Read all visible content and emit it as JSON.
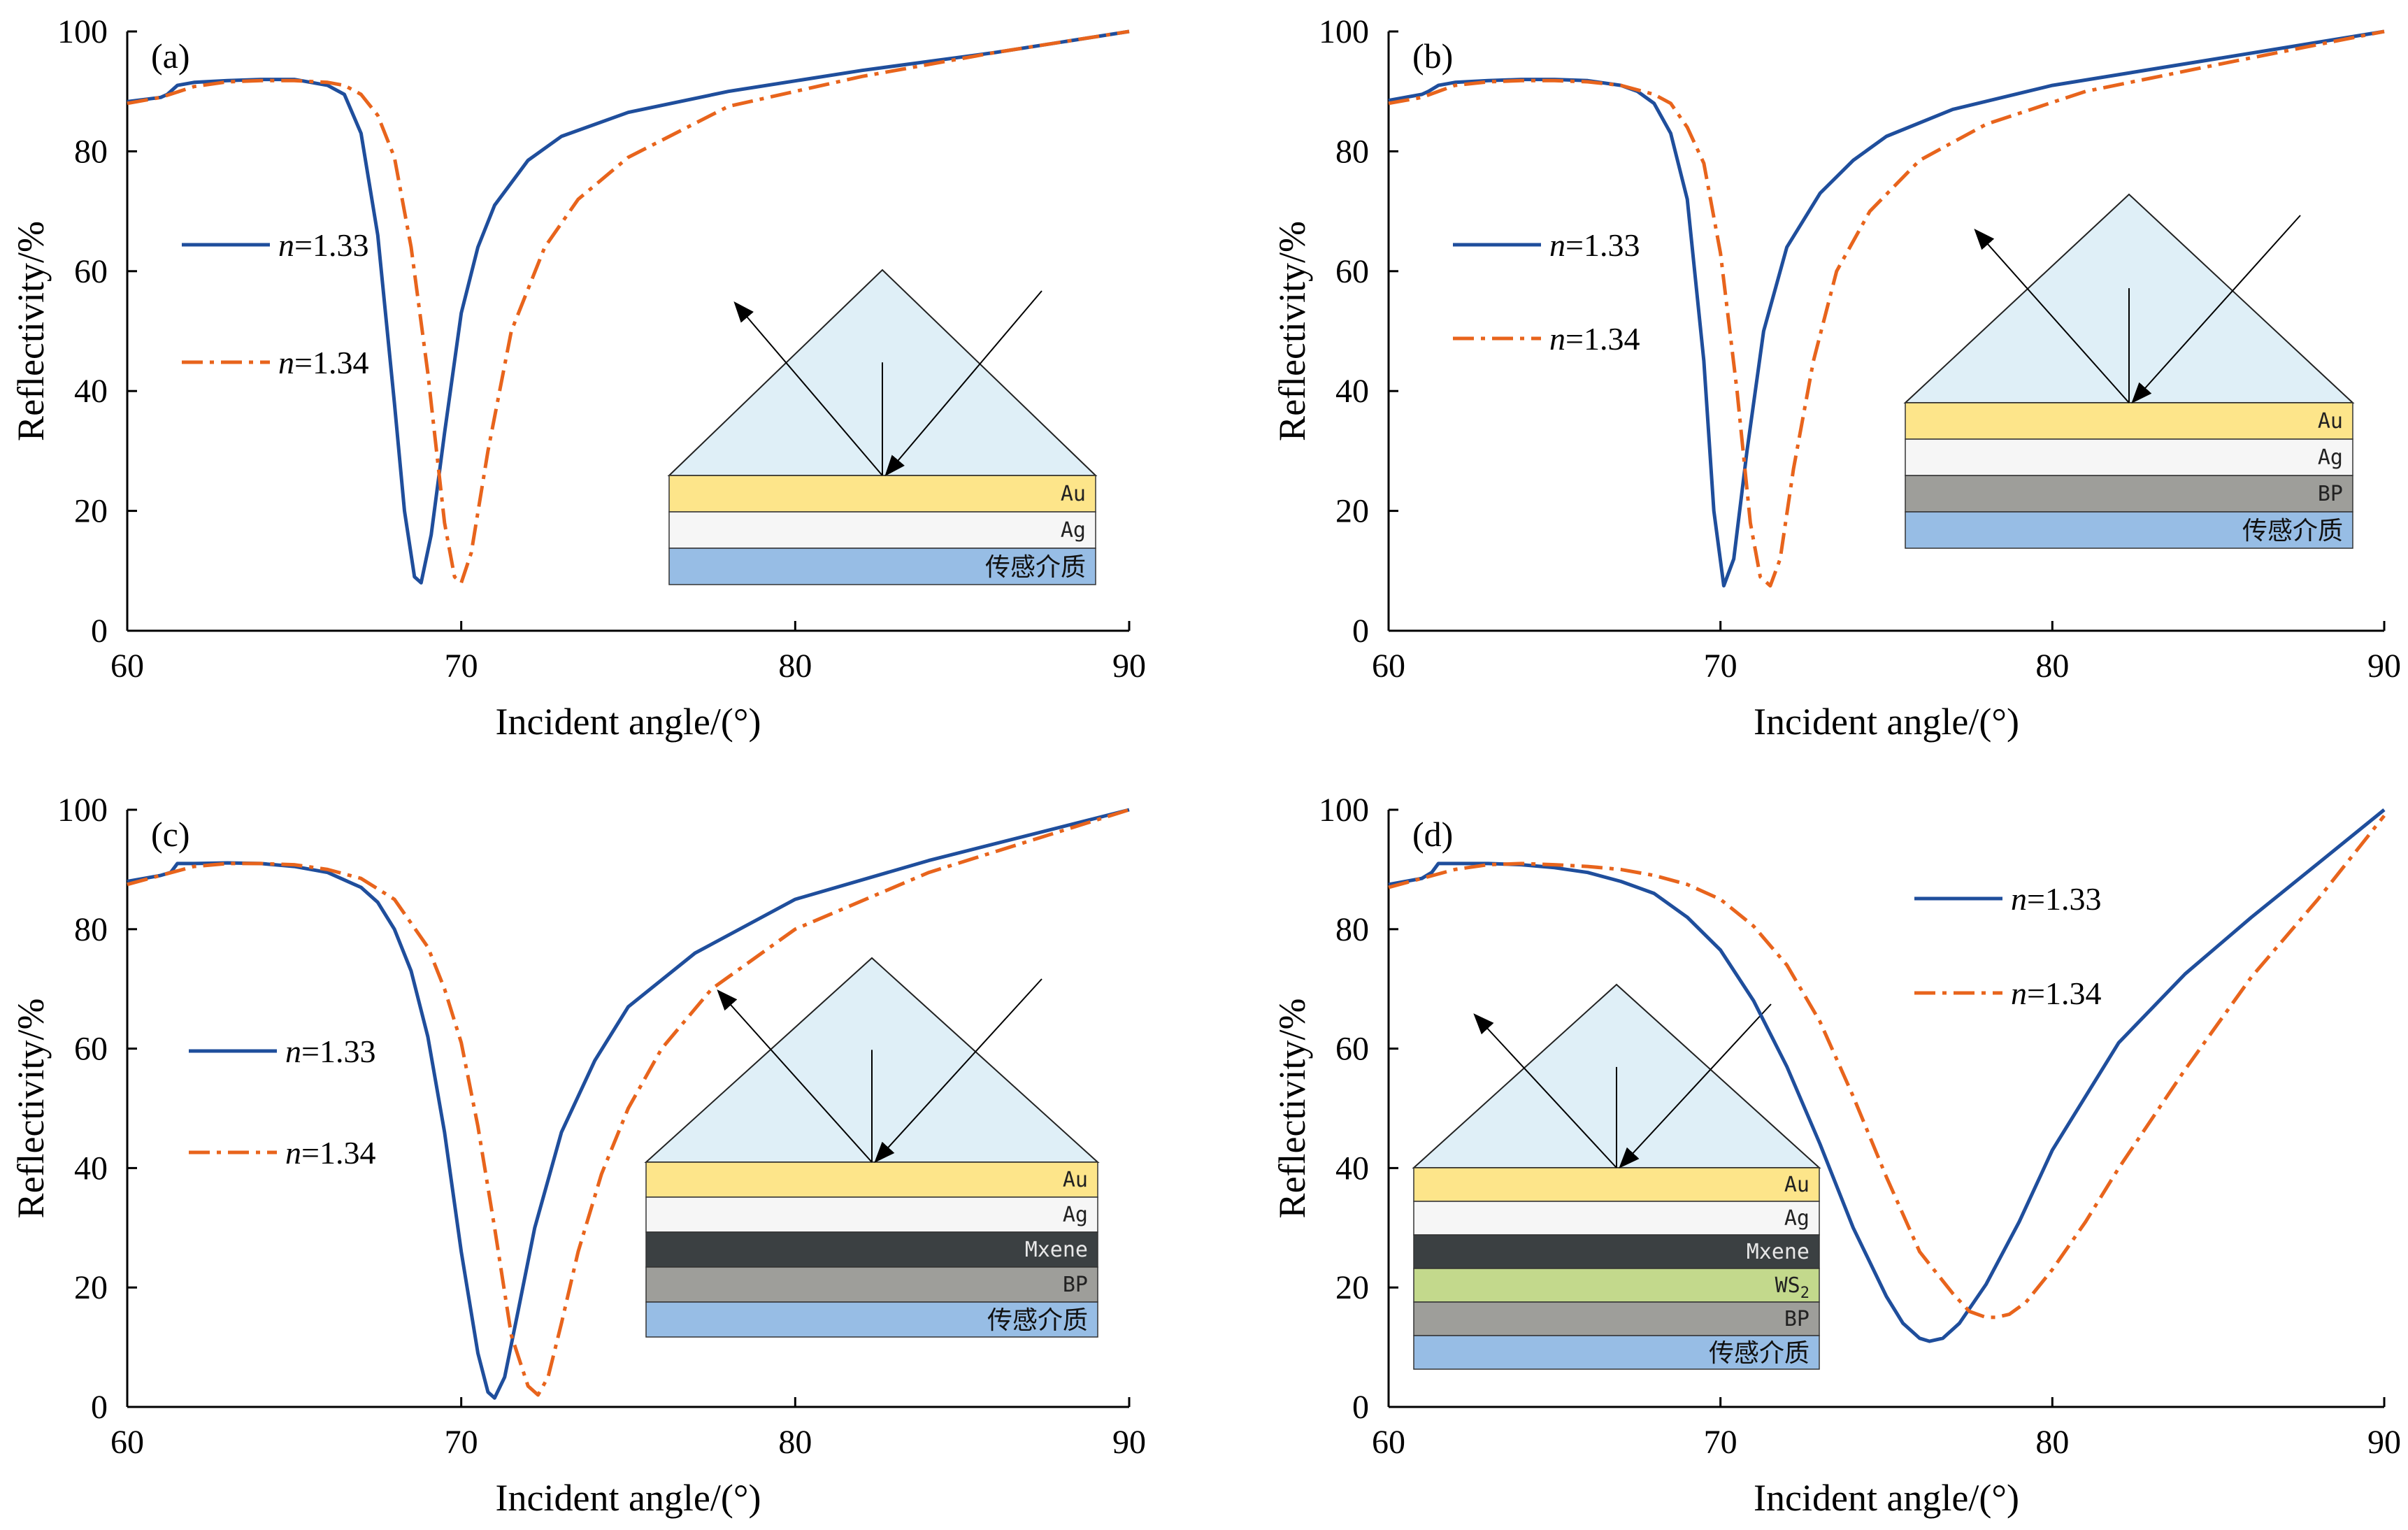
{
  "colors": {
    "solid": "#1f4e9c",
    "dashed": "#e8641c",
    "prism": "#dfeff7",
    "Au": "#fde58a",
    "Ag": "#f6f6f6",
    "BP": "#9e9e9a",
    "Mxene": "#3b4042",
    "WS2": "#c3d98c",
    "medium": "#97bde5"
  },
  "chart_data": [
    {
      "type": "line",
      "panel_label": "(a)",
      "xlabel": "Incident angle/(°)",
      "ylabel": "Reflectivity/%",
      "xlim": [
        60,
        90
      ],
      "ylim": [
        0,
        100
      ],
      "xticks": [
        "60",
        "70",
        "80",
        "90"
      ],
      "yticks": [
        "0",
        "20",
        "40",
        "60",
        "80",
        "100"
      ],
      "grid": false,
      "legend_position": "center-left",
      "series": [
        {
          "name": "n=1.33",
          "style": "solid",
          "x": [
            60,
            61,
            61.2,
            61.5,
            62,
            63,
            64,
            65,
            66,
            66.5,
            67,
            67.5,
            68,
            68.3,
            68.6,
            68.8,
            69.1,
            69.5,
            70,
            70.5,
            71,
            72,
            73,
            75,
            78,
            82,
            86,
            90
          ],
          "y": [
            88.3,
            89,
            89.5,
            91,
            91.5,
            91.8,
            92,
            92,
            91,
            89.5,
            83,
            66,
            38,
            20,
            9,
            8,
            16,
            33,
            53,
            64,
            71,
            78.5,
            82.5,
            86.5,
            90,
            93.5,
            96.5,
            100
          ]
        },
        {
          "name": "n=1.34",
          "style": "dashdot",
          "x": [
            60,
            61,
            62,
            63,
            64,
            65,
            66,
            66.5,
            67,
            67.5,
            68,
            68.5,
            69,
            69.5,
            69.8,
            70,
            70.3,
            70.8,
            71.5,
            72.5,
            73.5,
            75,
            78,
            82,
            86,
            90
          ],
          "y": [
            88,
            89,
            90.8,
            91.6,
            91.8,
            91.8,
            91.5,
            91,
            89.5,
            86,
            79,
            64,
            43,
            18,
            9,
            8,
            13,
            30,
            50,
            64,
            72,
            79,
            87.5,
            92.5,
            96.5,
            100
          ]
        }
      ],
      "inset_layers": [
        {
          "label": "Au",
          "material": "Au"
        },
        {
          "label": "Ag",
          "material": "Ag"
        },
        {
          "label": "传感介质",
          "material": "medium"
        }
      ]
    },
    {
      "type": "line",
      "panel_label": "(b)",
      "xlabel": "Incident angle/(°)",
      "ylabel": "Reflectivity/%",
      "xlim": [
        60,
        90
      ],
      "ylim": [
        0,
        100
      ],
      "xticks": [
        "60",
        "70",
        "80",
        "90"
      ],
      "yticks": [
        "0",
        "20",
        "40",
        "60",
        "80",
        "100"
      ],
      "grid": false,
      "legend_position": "center-left",
      "series": [
        {
          "name": "n=1.33",
          "style": "solid",
          "x": [
            60,
            61,
            61.2,
            61.5,
            62,
            63,
            64,
            65,
            66,
            67,
            67.5,
            68,
            68.5,
            69,
            69.5,
            69.8,
            70.1,
            70.4,
            70.8,
            71.3,
            72,
            73,
            74,
            75,
            77,
            80,
            85,
            90
          ],
          "y": [
            88.5,
            89.5,
            90,
            91,
            91.5,
            91.8,
            92,
            92,
            91.8,
            91,
            90,
            88,
            83,
            72,
            45,
            20,
            7.5,
            12,
            30,
            50,
            64,
            73,
            78.5,
            82.5,
            87,
            91,
            95.5,
            100
          ]
        },
        {
          "name": "n=1.34",
          "style": "dashdot",
          "x": [
            60,
            61,
            62,
            63,
            64,
            65,
            66,
            67,
            68,
            68.5,
            69,
            69.5,
            70,
            70.5,
            70.9,
            71.2,
            71.5,
            71.8,
            72.2,
            72.8,
            73.5,
            74.5,
            76,
            78,
            81,
            85,
            90
          ],
          "y": [
            88,
            89,
            91,
            91.6,
            91.8,
            91.8,
            91.6,
            91,
            89.5,
            88,
            84,
            78,
            63,
            40,
            18,
            9,
            7.5,
            12,
            27,
            45,
            60,
            70,
            78.5,
            84.5,
            90,
            94.5,
            100
          ]
        }
      ],
      "inset_layers": [
        {
          "label": "Au",
          "material": "Au"
        },
        {
          "label": "Ag",
          "material": "Ag"
        },
        {
          "label": "BP",
          "material": "BP"
        },
        {
          "label": "传感介质",
          "material": "medium"
        }
      ]
    },
    {
      "type": "line",
      "panel_label": "(c)",
      "xlabel": "Incident angle/(°)",
      "ylabel": "Reflectivity/%",
      "xlim": [
        60,
        90
      ],
      "ylim": [
        0,
        100
      ],
      "xticks": [
        "60",
        "70",
        "80",
        "90"
      ],
      "yticks": [
        "0",
        "20",
        "40",
        "60",
        "80",
        "100"
      ],
      "grid": false,
      "legend_position": "center-left",
      "series": [
        {
          "name": "n=1.33",
          "style": "solid",
          "x": [
            60,
            61,
            61.3,
            61.5,
            62,
            63,
            64,
            65,
            66,
            67,
            67.5,
            68,
            68.5,
            69,
            69.5,
            70,
            70.5,
            70.8,
            71,
            71.3,
            71.7,
            72.2,
            73,
            74,
            75,
            77,
            80,
            84,
            90
          ],
          "y": [
            88,
            89,
            89.5,
            91,
            91,
            91.1,
            91,
            90.5,
            89.5,
            87,
            84.5,
            80,
            73,
            62,
            46,
            26,
            9,
            2.5,
            1.5,
            5,
            16,
            30,
            46,
            58,
            67,
            76,
            85,
            91.5,
            100
          ]
        },
        {
          "name": "n=1.34",
          "style": "dashdot",
          "x": [
            60,
            61,
            62,
            63,
            64,
            65,
            66,
            67,
            68,
            69,
            69.5,
            70,
            70.5,
            71,
            71.5,
            72,
            72.3,
            72.6,
            73,
            73.5,
            74.2,
            75,
            76,
            77.5,
            80,
            84,
            90
          ],
          "y": [
            87.5,
            89,
            90.5,
            91,
            91,
            90.8,
            90,
            88.5,
            85,
            77,
            70,
            61,
            47,
            30,
            12,
            3.5,
            2,
            5,
            14,
            26,
            39,
            50,
            60,
            70,
            80,
            89.5,
            100
          ]
        }
      ],
      "inset_layers": [
        {
          "label": "Au",
          "material": "Au"
        },
        {
          "label": "Ag",
          "material": "Ag"
        },
        {
          "label": "Mxene",
          "material": "Mxene"
        },
        {
          "label": "BP",
          "material": "BP"
        },
        {
          "label": "传感介质",
          "material": "medium"
        }
      ]
    },
    {
      "type": "line",
      "panel_label": "(d)",
      "xlabel": "Incident angle/(°)",
      "ylabel": "Reflectivity/%",
      "xlim": [
        60,
        90
      ],
      "ylim": [
        0,
        100
      ],
      "xticks": [
        "60",
        "70",
        "80",
        "90"
      ],
      "yticks": [
        "0",
        "20",
        "40",
        "60",
        "80",
        "100"
      ],
      "grid": false,
      "legend_position": "upper-center",
      "series": [
        {
          "name": "n=1.33",
          "style": "solid",
          "x": [
            60,
            61,
            61.3,
            61.5,
            62,
            63,
            64,
            65,
            66,
            67,
            68,
            69,
            70,
            71,
            72,
            73,
            74,
            75,
            75.5,
            76,
            76.3,
            76.7,
            77.2,
            78,
            79,
            80,
            82,
            84,
            86,
            88,
            90
          ],
          "y": [
            87.5,
            88.5,
            89.5,
            91,
            91,
            91,
            90.8,
            90.3,
            89.5,
            88,
            86,
            82,
            76.5,
            68,
            57,
            44,
            30,
            18.5,
            14,
            11.5,
            11,
            11.5,
            14,
            20.5,
            31,
            43,
            61,
            72.5,
            82,
            91,
            100
          ]
        },
        {
          "name": "n=1.34",
          "style": "dashdot",
          "x": [
            60,
            61,
            62,
            63,
            64,
            65,
            66,
            67,
            68,
            69,
            70,
            71,
            72,
            73,
            74,
            75,
            76,
            77,
            77.5,
            78,
            78.3,
            78.7,
            79.2,
            80,
            81,
            82,
            84,
            86,
            88,
            90
          ],
          "y": [
            87,
            88.5,
            90,
            90.8,
            91,
            90.8,
            90.5,
            90,
            89,
            87.5,
            85,
            80.5,
            74,
            64.5,
            52,
            38.5,
            26,
            19,
            16,
            15,
            15,
            15.5,
            17.5,
            23,
            31,
            40,
            56.5,
            72,
            85,
            99
          ]
        }
      ],
      "inset_layers": [
        {
          "label": "Au",
          "material": "Au"
        },
        {
          "label": "Ag",
          "material": "Ag"
        },
        {
          "label": "Mxene",
          "material": "Mxene"
        },
        {
          "label": "WS",
          "sub": "2",
          "material": "WS2"
        },
        {
          "label": "BP",
          "material": "BP"
        },
        {
          "label": "传感介质",
          "material": "medium"
        }
      ]
    }
  ]
}
